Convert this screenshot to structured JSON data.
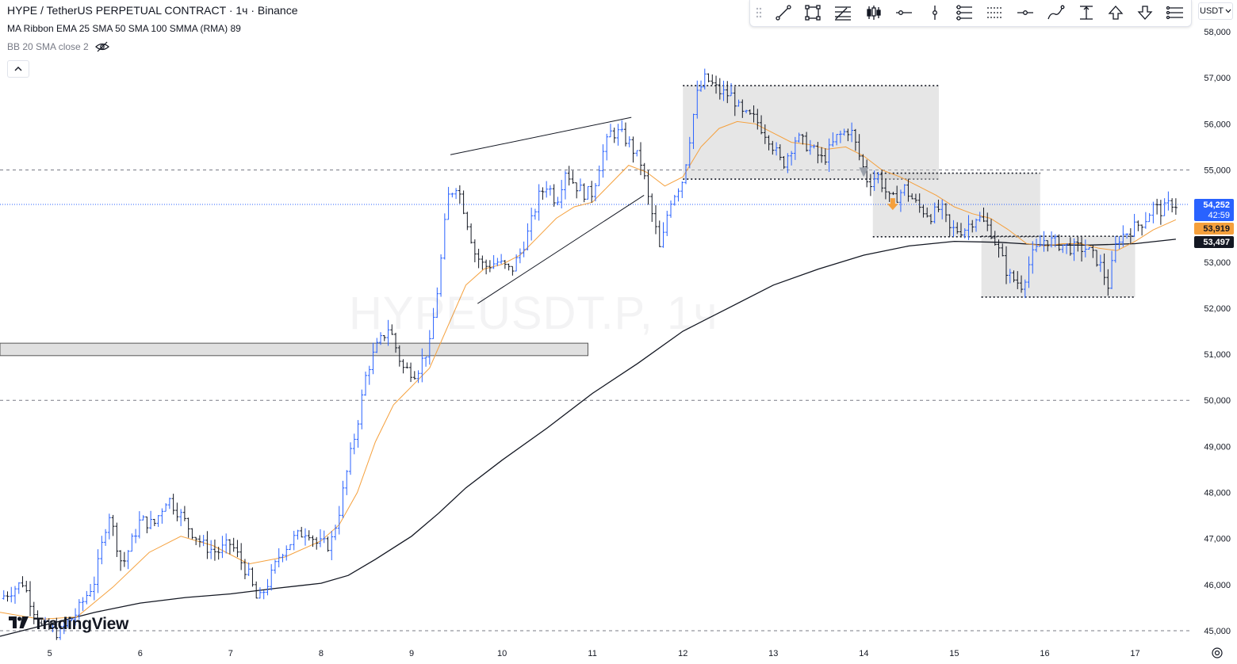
{
  "header": {
    "title": "HYPE / TetherUS PERPETUAL CONTRACT · 1ч · Binance",
    "indicator_1": "MA Ribbon EMA 25 SMA 50 SMA 100 SMMA (RMA) 89",
    "indicator_2": "BB 20 SMA close 2"
  },
  "currency": "USDT",
  "watermark": "HYPEUSDT.P, 1ч",
  "brand": "TradingView",
  "toolbar_icons": [
    "drag-handle-icon",
    "trend-line-icon",
    "rectangle-icon",
    "fib-retracement-icon",
    "long-position-icon",
    "horizontal-ray-icon",
    "vertical-line-icon",
    "parallel-channel-icon",
    "fib-extension-icon",
    "horizontal-line-icon",
    "brush-icon",
    "price-range-icon",
    "arrow-up-icon",
    "arrow-down-icon",
    "menu-icon"
  ],
  "price_tags": {
    "last_price": "54,252",
    "countdown": "42:59",
    "ema_value": "53,919",
    "smma_value": "53,497"
  },
  "colors": {
    "bull": "#2962ff",
    "bear": "#131722",
    "ema": "#f5a03c",
    "smma": "#131722",
    "zone": "#d9d9d9",
    "last_price": "#2962ff"
  },
  "chart_data": {
    "type": "candlestick",
    "title": "HYPE / TetherUS PERPETUAL CONTRACT · 1ч · Binance",
    "y_ticks": [
      "45,000",
      "46,000",
      "47,000",
      "48,000",
      "49,000",
      "50,000",
      "51,000",
      "52,000",
      "53,000",
      "54,000",
      "55,000",
      "56,000",
      "57,000",
      "58,000"
    ],
    "y_values": [
      45000,
      46000,
      47000,
      48000,
      49000,
      50000,
      51000,
      52000,
      53000,
      54000,
      55000,
      56000,
      57000,
      58000
    ],
    "ylim": [
      44750,
      58300
    ],
    "x_ticks": [
      "5",
      "6",
      "7",
      "8",
      "9",
      "10",
      "11",
      "12",
      "13",
      "14",
      "15",
      "16",
      "17"
    ],
    "x_tick_days": [
      5,
      6,
      7,
      8,
      9,
      10,
      11,
      12,
      13,
      14,
      15,
      16,
      17
    ],
    "xlim_days": [
      4.45,
      17.6
    ],
    "grid": false,
    "horizontal_levels": [
      55000,
      50000,
      45000
    ],
    "last_price": 54252,
    "close_path": [
      [
        4.45,
        45700
      ],
      [
        4.7,
        46050
      ],
      [
        4.9,
        45100
      ],
      [
        5.1,
        44950
      ],
      [
        5.3,
        45400
      ],
      [
        5.5,
        46100
      ],
      [
        5.65,
        47600
      ],
      [
        5.8,
        46400
      ],
      [
        6.0,
        47400
      ],
      [
        6.15,
        47300
      ],
      [
        6.3,
        47900
      ],
      [
        6.45,
        47500
      ],
      [
        6.55,
        47200
      ],
      [
        6.7,
        46850
      ],
      [
        6.85,
        46700
      ],
      [
        7.0,
        46900
      ],
      [
        7.1,
        46550
      ],
      [
        7.2,
        46200
      ],
      [
        7.3,
        45600
      ],
      [
        7.45,
        46200
      ],
      [
        7.55,
        46700
      ],
      [
        7.7,
        47000
      ],
      [
        7.85,
        47200
      ],
      [
        7.95,
        46900
      ],
      [
        8.1,
        46850
      ],
      [
        8.2,
        47600
      ],
      [
        8.3,
        48600
      ],
      [
        8.4,
        49500
      ],
      [
        8.5,
        50600
      ],
      [
        8.6,
        51100
      ],
      [
        8.75,
        51600
      ],
      [
        8.9,
        50700
      ],
      [
        9.05,
        50600
      ],
      [
        9.2,
        51200
      ],
      [
        9.3,
        52600
      ],
      [
        9.4,
        54400
      ],
      [
        9.5,
        54700
      ],
      [
        9.6,
        54000
      ],
      [
        9.7,
        53200
      ],
      [
        9.8,
        52900
      ],
      [
        9.95,
        53000
      ],
      [
        10.1,
        52800
      ],
      [
        10.2,
        53200
      ],
      [
        10.3,
        53700
      ],
      [
        10.4,
        54400
      ],
      [
        10.5,
        54700
      ],
      [
        10.6,
        54300
      ],
      [
        10.7,
        55000
      ],
      [
        10.8,
        54700
      ],
      [
        10.9,
        54500
      ],
      [
        11.0,
        54500
      ],
      [
        11.1,
        55300
      ],
      [
        11.2,
        55800
      ],
      [
        11.3,
        55800
      ],
      [
        11.4,
        55600
      ],
      [
        11.55,
        55100
      ],
      [
        11.6,
        54500
      ],
      [
        11.7,
        53700
      ],
      [
        11.75,
        53200
      ],
      [
        11.85,
        54300
      ],
      [
        12.0,
        54800
      ],
      [
        12.05,
        55400
      ],
      [
        12.15,
        56600
      ],
      [
        12.25,
        57000
      ],
      [
        12.4,
        56700
      ],
      [
        12.55,
        56600
      ],
      [
        12.65,
        56200
      ],
      [
        12.8,
        56100
      ],
      [
        12.95,
        55700
      ],
      [
        13.1,
        55100
      ],
      [
        13.25,
        55700
      ],
      [
        13.4,
        55500
      ],
      [
        13.55,
        55200
      ],
      [
        13.7,
        55700
      ],
      [
        13.85,
        55900
      ],
      [
        13.95,
        55300
      ],
      [
        14.05,
        54700
      ],
      [
        14.15,
        54900
      ],
      [
        14.3,
        54300
      ],
      [
        14.45,
        54600
      ],
      [
        14.6,
        54200
      ],
      [
        14.75,
        54000
      ],
      [
        14.85,
        54200
      ],
      [
        14.95,
        53700
      ],
      [
        15.1,
        53700
      ],
      [
        15.25,
        54000
      ],
      [
        15.4,
        53700
      ],
      [
        15.5,
        53200
      ],
      [
        15.6,
        52700
      ],
      [
        15.75,
        52500
      ],
      [
        15.85,
        53100
      ],
      [
        16.0,
        53500
      ],
      [
        16.15,
        53400
      ],
      [
        16.3,
        53300
      ],
      [
        16.45,
        53300
      ],
      [
        16.6,
        53000
      ],
      [
        16.7,
        52500
      ],
      [
        16.8,
        53500
      ],
      [
        16.95,
        53700
      ],
      [
        17.1,
        53900
      ],
      [
        17.2,
        54200
      ],
      [
        17.3,
        54100
      ],
      [
        17.4,
        54300
      ],
      [
        17.45,
        54250
      ]
    ],
    "ema25_path": [
      [
        4.45,
        45400
      ],
      [
        4.9,
        45250
      ],
      [
        5.3,
        45300
      ],
      [
        5.7,
        45950
      ],
      [
        6.1,
        46700
      ],
      [
        6.45,
        47050
      ],
      [
        6.8,
        46850
      ],
      [
        7.2,
        46450
      ],
      [
        7.6,
        46600
      ],
      [
        8.0,
        46950
      ],
      [
        8.2,
        47300
      ],
      [
        8.4,
        48000
      ],
      [
        8.6,
        49100
      ],
      [
        8.8,
        49900
      ],
      [
        9.0,
        50300
      ],
      [
        9.2,
        50700
      ],
      [
        9.4,
        51600
      ],
      [
        9.6,
        52500
      ],
      [
        9.8,
        52850
      ],
      [
        10.0,
        52950
      ],
      [
        10.2,
        53150
      ],
      [
        10.4,
        53550
      ],
      [
        10.6,
        53950
      ],
      [
        10.8,
        54200
      ],
      [
        11.0,
        54300
      ],
      [
        11.2,
        54700
      ],
      [
        11.4,
        55100
      ],
      [
        11.6,
        54950
      ],
      [
        11.8,
        54650
      ],
      [
        12.0,
        54850
      ],
      [
        12.2,
        55500
      ],
      [
        12.4,
        55900
      ],
      [
        12.6,
        56050
      ],
      [
        12.8,
        56000
      ],
      [
        13.0,
        55800
      ],
      [
        13.2,
        55600
      ],
      [
        13.4,
        55550
      ],
      [
        13.6,
        55450
      ],
      [
        13.8,
        55500
      ],
      [
        14.0,
        55300
      ],
      [
        14.2,
        55000
      ],
      [
        14.4,
        54850
      ],
      [
        14.6,
        54650
      ],
      [
        14.8,
        54450
      ],
      [
        15.0,
        54200
      ],
      [
        15.2,
        54050
      ],
      [
        15.4,
        53950
      ],
      [
        15.6,
        53700
      ],
      [
        15.8,
        53400
      ],
      [
        16.0,
        53350
      ],
      [
        16.2,
        53400
      ],
      [
        16.4,
        53400
      ],
      [
        16.6,
        53300
      ],
      [
        16.8,
        53250
      ],
      [
        17.0,
        53450
      ],
      [
        17.2,
        53700
      ],
      [
        17.45,
        53919
      ]
    ],
    "smma89_path": [
      [
        4.45,
        44880
      ],
      [
        5.0,
        45150
      ],
      [
        5.5,
        45400
      ],
      [
        6.0,
        45600
      ],
      [
        6.5,
        45720
      ],
      [
        7.0,
        45800
      ],
      [
        7.5,
        45920
      ],
      [
        8.0,
        46030
      ],
      [
        8.3,
        46200
      ],
      [
        8.6,
        46550
      ],
      [
        9.0,
        47050
      ],
      [
        9.3,
        47550
      ],
      [
        9.6,
        48100
      ],
      [
        10.0,
        48700
      ],
      [
        10.5,
        49400
      ],
      [
        11.0,
        50150
      ],
      [
        11.5,
        50800
      ],
      [
        12.0,
        51500
      ],
      [
        12.5,
        52000
      ],
      [
        13.0,
        52500
      ],
      [
        13.5,
        52850
      ],
      [
        14.0,
        53150
      ],
      [
        14.5,
        53350
      ],
      [
        15.0,
        53450
      ],
      [
        15.5,
        53430
      ],
      [
        16.0,
        53370
      ],
      [
        16.5,
        53370
      ],
      [
        17.0,
        53400
      ],
      [
        17.45,
        53497
      ]
    ],
    "zones": [
      {
        "x0": 4.45,
        "x1": 10.95,
        "y0": 50970,
        "y1": 51240,
        "style": "solid"
      },
      {
        "x0": 12.0,
        "x1": 14.83,
        "y0": 54800,
        "y1": 56830,
        "style": "dotted"
      },
      {
        "x0": 14.1,
        "x1": 15.95,
        "y0": 53550,
        "y1": 54930,
        "style": "dotted"
      },
      {
        "x0": 15.3,
        "x1": 17.0,
        "y0": 52240,
        "y1": 53560,
        "style": "dotted"
      }
    ],
    "trendlines": [
      {
        "p1": [
          9.43,
          55330
        ],
        "p2": [
          11.43,
          56140
        ]
      },
      {
        "p1": [
          9.73,
          52100
        ],
        "p2": [
          11.57,
          54450
        ]
      }
    ]
  }
}
